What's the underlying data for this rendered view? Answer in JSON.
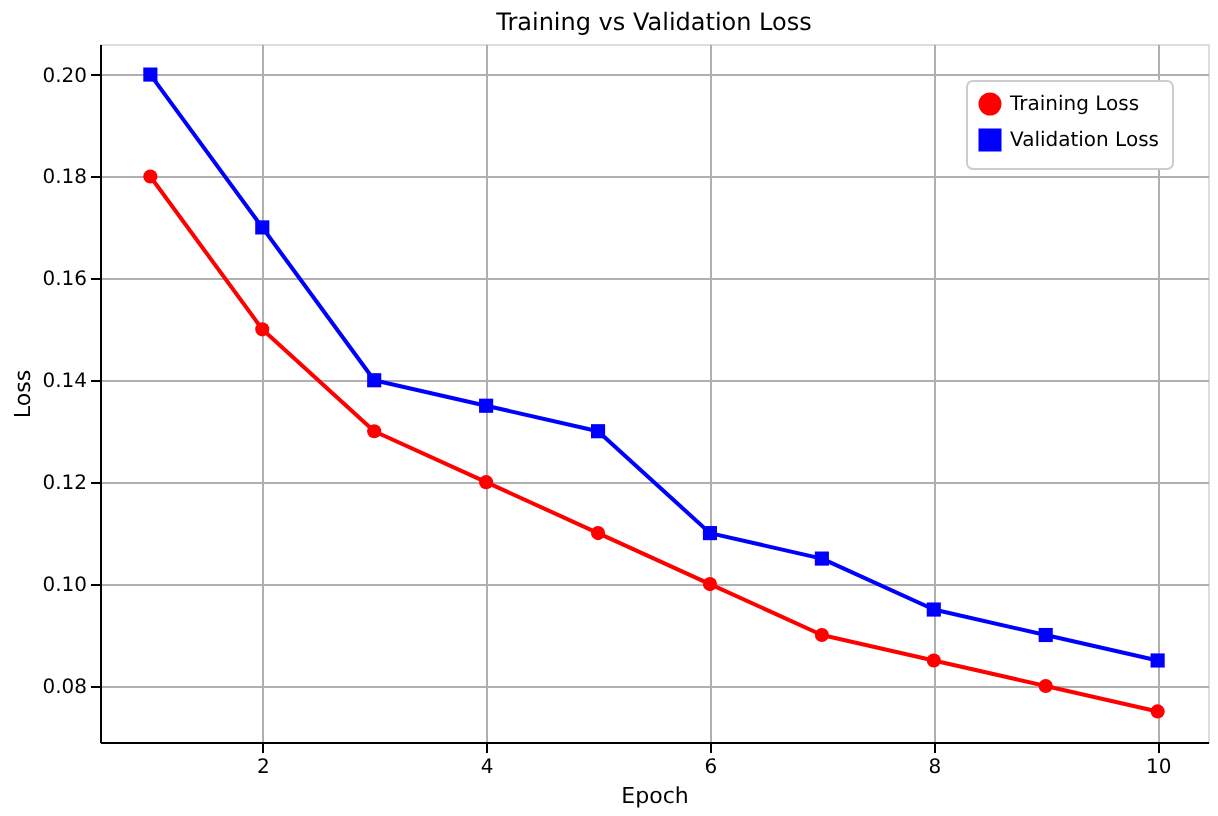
{
  "chart_data": {
    "type": "line",
    "title": "Training vs Validation Loss",
    "xlabel": "Epoch",
    "ylabel": "Loss",
    "x": [
      1,
      2,
      3,
      4,
      5,
      6,
      7,
      8,
      9,
      10
    ],
    "series": [
      {
        "name": "Training Loss",
        "color": "#ff0000",
        "marker": "circle",
        "values": [
          0.18,
          0.15,
          0.13,
          0.12,
          0.11,
          0.1,
          0.09,
          0.085,
          0.08,
          0.075
        ]
      },
      {
        "name": "Validation Loss",
        "color": "#0000ff",
        "marker": "square",
        "values": [
          0.2,
          0.17,
          0.14,
          0.135,
          0.13,
          0.11,
          0.105,
          0.095,
          0.09,
          0.085
        ]
      }
    ],
    "xlim": [
      0.55,
      10.45
    ],
    "xticks": [
      2,
      4,
      6,
      8,
      10
    ],
    "ylim": [
      0.069,
      0.206
    ],
    "yticks": [
      {
        "value": 0.08,
        "label": "0.08"
      },
      {
        "value": 0.1,
        "label": "0.10"
      },
      {
        "value": 0.12,
        "label": "0.12"
      },
      {
        "value": 0.14,
        "label": "0.14"
      },
      {
        "value": 0.16,
        "label": "0.16"
      },
      {
        "value": 0.18,
        "label": "0.18"
      },
      {
        "value": 0.2,
        "label": "0.20"
      }
    ],
    "grid": true,
    "legend": "top right",
    "line_style": "solid"
  }
}
